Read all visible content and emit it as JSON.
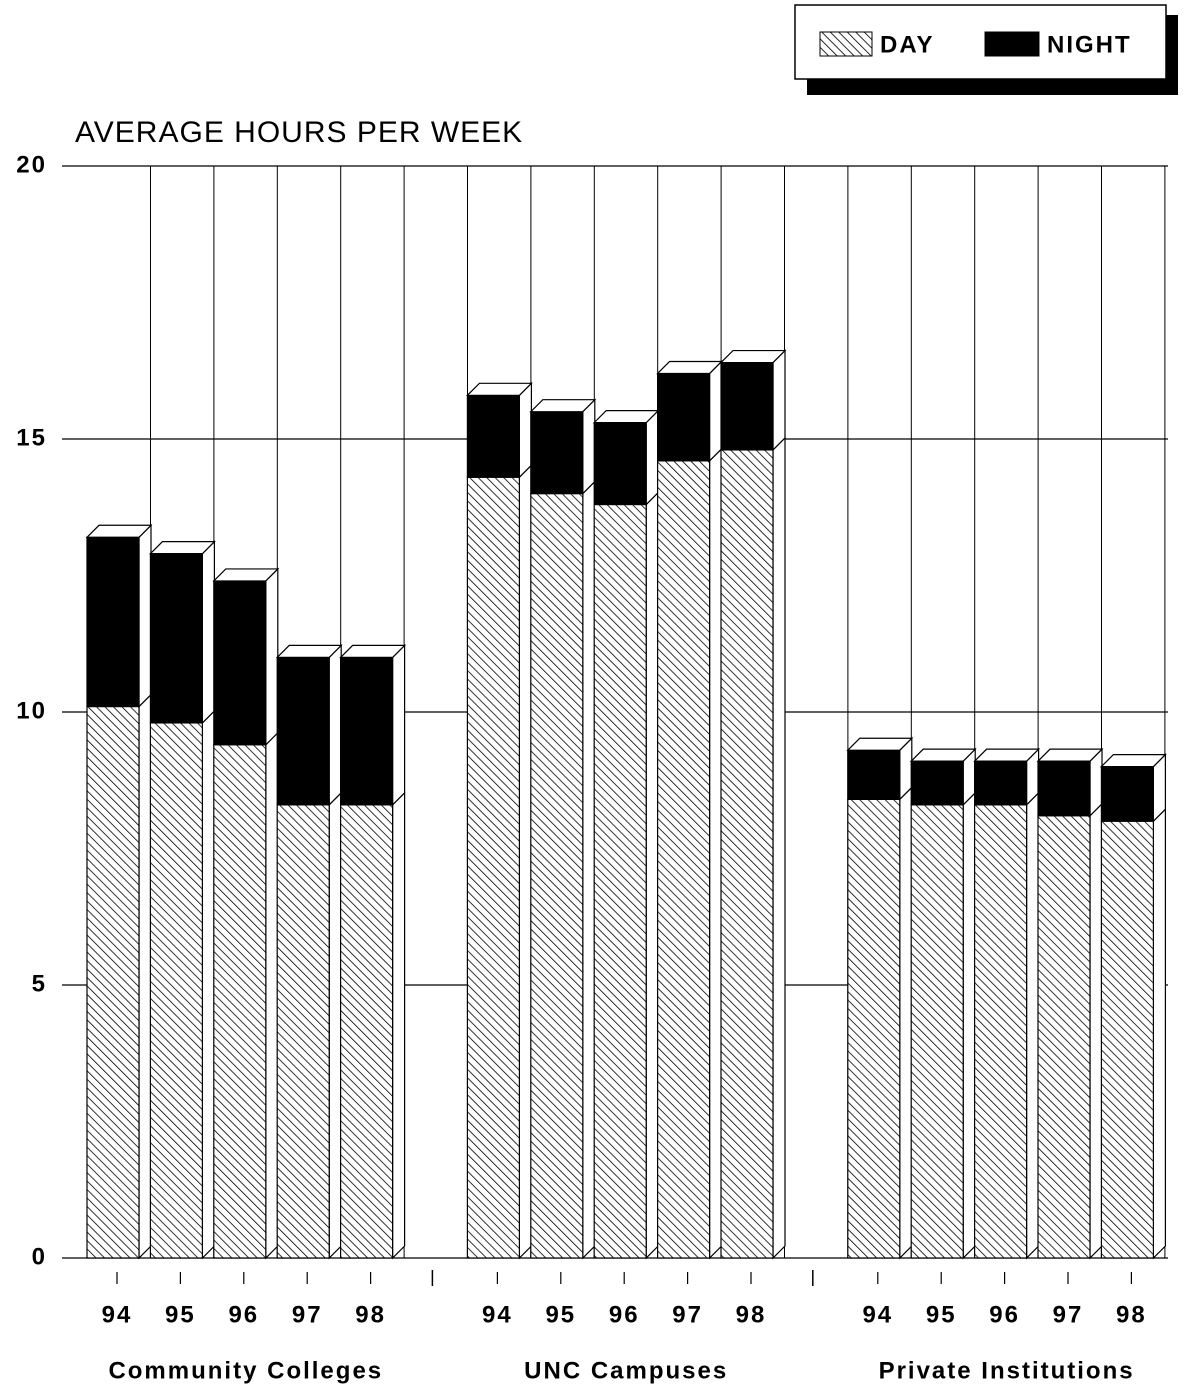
{
  "chart_data": {
    "type": "bar",
    "stacked": true,
    "title": "AVERAGE HOURS PER WEEK",
    "groups": [
      {
        "name": "Community Colleges",
        "categories": [
          "94",
          "95",
          "96",
          "97",
          "98"
        ]
      },
      {
        "name": "UNC Campuses",
        "categories": [
          "94",
          "95",
          "96",
          "97",
          "98"
        ]
      },
      {
        "name": "Private Institutions",
        "categories": [
          "94",
          "95",
          "96",
          "97",
          "98"
        ]
      }
    ],
    "series": [
      {
        "name": "DAY",
        "color": "#000000",
        "pattern": "hatch",
        "values": [
          10.1,
          9.8,
          9.4,
          8.3,
          8.3,
          14.3,
          14.0,
          13.8,
          14.6,
          14.8,
          8.4,
          8.3,
          8.3,
          8.1,
          8.0
        ]
      },
      {
        "name": "NIGHT",
        "color": "#000000",
        "pattern": "solid",
        "values": [
          3.1,
          3.1,
          3.0,
          2.7,
          2.7,
          1.5,
          1.5,
          1.5,
          1.6,
          1.6,
          0.9,
          0.8,
          0.8,
          1.0,
          1.0
        ]
      }
    ],
    "ylim": [
      0,
      20
    ],
    "yticks": [
      0,
      5,
      10,
      15,
      20
    ],
    "grid": true,
    "legend": "top-right"
  }
}
